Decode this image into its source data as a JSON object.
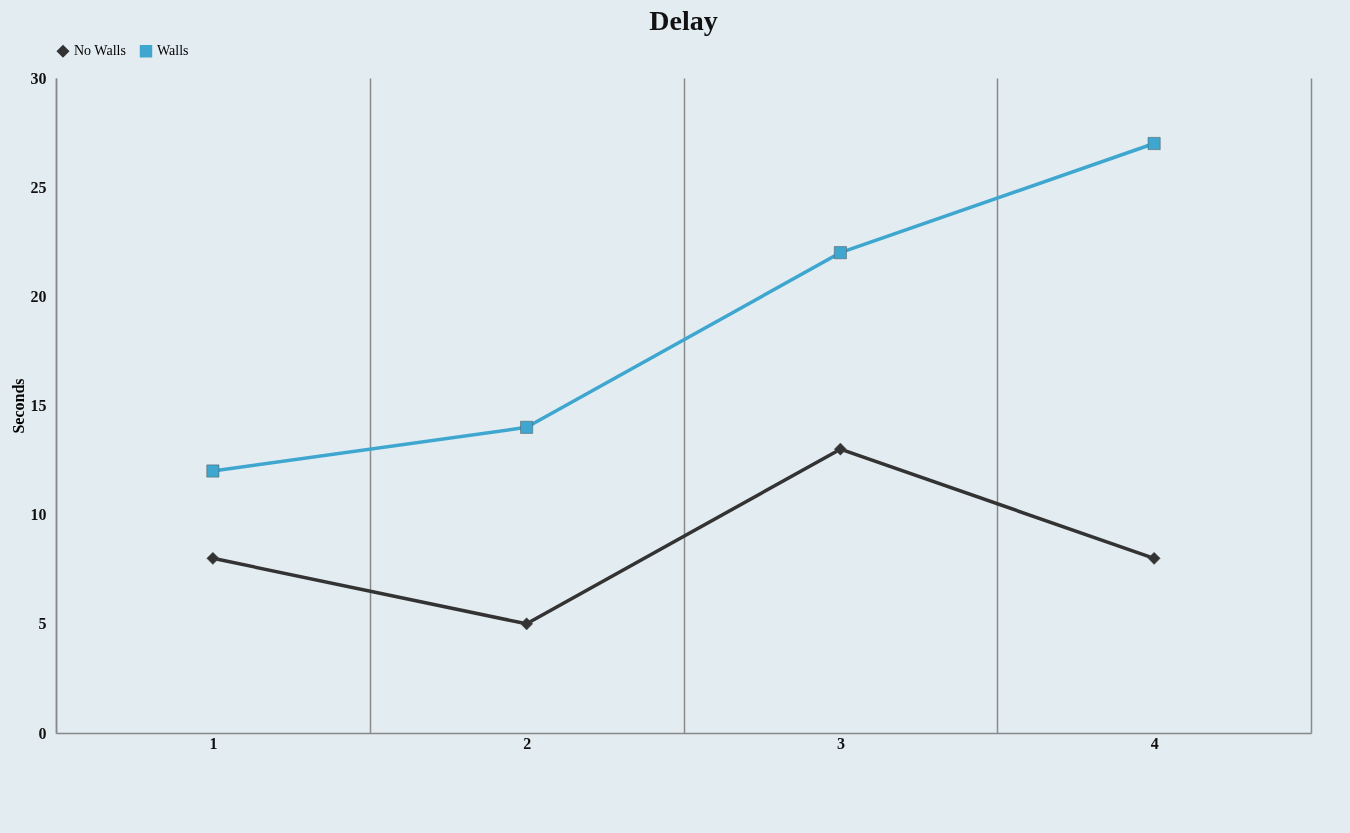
{
  "chart_data": {
    "type": "line",
    "title": "Delay",
    "ylabel": "Seconds",
    "categories": [
      "1",
      "2",
      "3",
      "4"
    ],
    "series": [
      {
        "name": "No Walls",
        "color": "#333333",
        "marker": "diamond",
        "values": [
          8,
          5,
          13,
          8
        ]
      },
      {
        "name": "Walls",
        "color": "#3ea6cf",
        "marker": "square",
        "values": [
          12,
          14,
          22,
          27
        ]
      }
    ],
    "ylim": [
      0,
      30
    ],
    "yticks": [
      0,
      5,
      10,
      15,
      20,
      25,
      30
    ],
    "grid": "x",
    "legend": "top",
    "line_style": "solid"
  }
}
